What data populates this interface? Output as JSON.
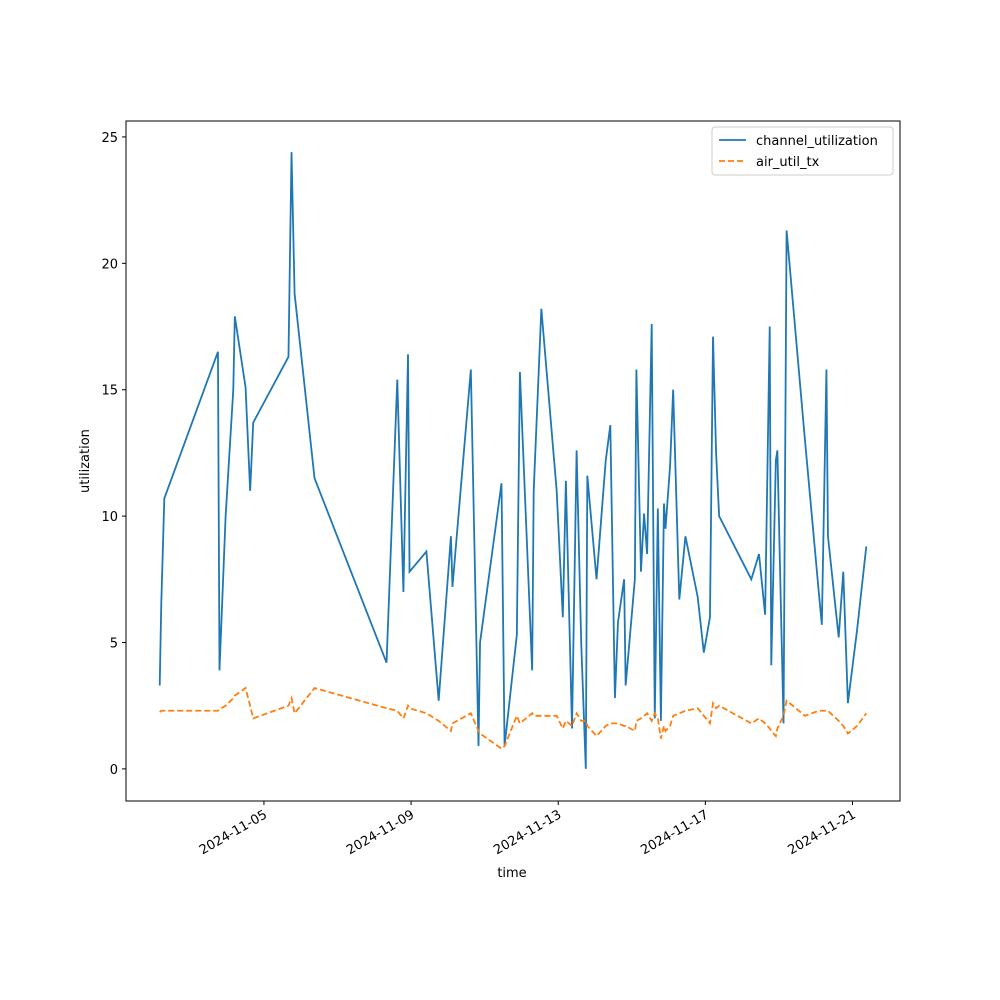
{
  "chart_data": {
    "type": "line",
    "xlabel": "time",
    "ylabel": "utilization",
    "x": [
      "2024-11-02T04:00",
      "2024-11-02T05:00",
      "2024-11-02T07:00",
      "2024-11-03T18:00",
      "2024-11-03T19:00",
      "2024-11-03T23:00",
      "2024-11-04T04:00",
      "2024-11-04T05:00",
      "2024-11-04T12:00",
      "2024-11-04T15:00",
      "2024-11-04T17:00",
      "2024-11-05T16:00",
      "2024-11-05T18:00",
      "2024-11-05T20:00",
      "2024-11-06T09:00",
      "2024-11-08T08:00",
      "2024-11-08T15:00",
      "2024-11-08T19:00",
      "2024-11-08T22:00",
      "2024-11-08T23:00",
      "2024-11-09T10:00",
      "2024-11-09T18:00",
      "2024-11-10T02:00",
      "2024-11-10T03:00",
      "2024-11-10T15:00",
      "2024-11-10T20:00",
      "2024-11-10T21:00",
      "2024-11-11T11:00",
      "2024-11-11T13:00",
      "2024-11-11T21:00",
      "2024-11-11T23:00",
      "2024-11-12T07:00",
      "2024-11-12T08:00",
      "2024-11-12T13:00",
      "2024-11-12T23:00",
      "2024-11-13T03:00",
      "2024-11-13T05:00",
      "2024-11-13T09:00",
      "2024-11-13T12:00",
      "2024-11-13T15:00",
      "2024-11-13T18:00",
      "2024-11-13T19:00",
      "2024-11-14T01:00",
      "2024-11-14T07:00",
      "2024-11-14T10:00",
      "2024-11-14T13:00",
      "2024-11-14T15:00",
      "2024-11-14T19:00",
      "2024-11-14T20:00",
      "2024-11-15T02:00",
      "2024-11-15T03:00",
      "2024-11-15T06:00",
      "2024-11-15T08:00",
      "2024-11-15T10:00",
      "2024-11-15T13:00",
      "2024-11-15T15:00",
      "2024-11-15T17:00",
      "2024-11-15T19:00",
      "2024-11-15T21:00",
      "2024-11-15T22:00",
      "2024-11-16T01:00",
      "2024-11-16T03:00",
      "2024-11-16T07:00",
      "2024-11-16T11:00",
      "2024-11-16T19:00",
      "2024-11-16T23:00",
      "2024-11-17T03:00",
      "2024-11-17T05:00",
      "2024-11-17T07:00",
      "2024-11-17T09:00",
      "2024-11-18T06:00",
      "2024-11-18T11:00",
      "2024-11-18T15:00",
      "2024-11-18T18:00",
      "2024-11-18T19:00",
      "2024-11-18T22:00",
      "2024-11-18T23:00",
      "2024-11-19T03:00",
      "2024-11-19T05:00",
      "2024-11-19T17:00",
      "2024-11-20T02:00",
      "2024-11-20T04:00",
      "2024-11-20T07:00",
      "2024-11-20T08:00",
      "2024-11-20T15:00",
      "2024-11-20T18:00",
      "2024-11-20T21:00",
      "2024-11-21T03:00",
      "2024-11-21T09:00"
    ],
    "series": [
      {
        "name": "channel_utilization",
        "color": "#1f77b4",
        "linestyle": "solid",
        "values": [
          3.3,
          6.5,
          10.7,
          16.5,
          3.9,
          10,
          15,
          17.9,
          15.1,
          11,
          13.7,
          16.3,
          24.4,
          18.8,
          11.5,
          4.2,
          15.4,
          7,
          16.4,
          7.8,
          8.6,
          2.7,
          9.2,
          7.2,
          15.8,
          0.9,
          5,
          11.3,
          0.9,
          5.3,
          15.7,
          3.9,
          11,
          18.2,
          11,
          6,
          11.4,
          1.6,
          12.6,
          5,
          0,
          11.6,
          7.5,
          12.2,
          13.6,
          2.8,
          5.8,
          7.5,
          3.3,
          7.5,
          15.8,
          7.8,
          10.1,
          8.5,
          17.6,
          2,
          10.3,
          1.9,
          10.5,
          9.5,
          12,
          15,
          6.7,
          9.2,
          6.8,
          4.6,
          6,
          17.1,
          12.5,
          10,
          7.5,
          8.5,
          6.1,
          17.5,
          4.1,
          12.2,
          12.6,
          1.8,
          21.3,
          13,
          7,
          5.7,
          15.8,
          9.2,
          5.2,
          7.8,
          2.6,
          5.5,
          8.8
        ]
      },
      {
        "name": "air_util_tx",
        "color": "#ff7f0e",
        "linestyle": "dashed",
        "values": [
          2.25,
          2.3,
          2.3,
          2.3,
          2.35,
          2.5,
          2.8,
          2.9,
          3.2,
          2.5,
          2.0,
          2.5,
          2.8,
          2.2,
          3.2,
          2.4,
          2.3,
          2.0,
          2.5,
          2.4,
          2.2,
          1.9,
          1.5,
          1.8,
          2.2,
          1.5,
          1.4,
          0.8,
          0.9,
          2.1,
          1.8,
          2.2,
          2.1,
          2.1,
          2.1,
          1.6,
          1.9,
          1.7,
          2.2,
          1.9,
          1.9,
          1.7,
          1.3,
          1.7,
          1.8,
          1.8,
          1.8,
          1.7,
          1.7,
          1.5,
          1.9,
          2.0,
          2.1,
          2.2,
          1.9,
          2.2,
          2.0,
          1.2,
          1.7,
          1.5,
          1.7,
          2.1,
          2.2,
          2.3,
          2.4,
          2.1,
          1.8,
          2.6,
          2.4,
          2.5,
          1.8,
          2.0,
          1.8,
          1.6,
          1.5,
          1.3,
          1.6,
          2.1,
          2.7,
          2.1,
          2.3,
          2.3,
          2.3,
          2.3,
          1.9,
          1.7,
          1.4,
          1.7,
          2.2
        ]
      }
    ],
    "xlim": [
      "2024-11-01T06:00",
      "2024-11-22T07:00"
    ],
    "xticks": [
      "2024-11-05",
      "2024-11-09",
      "2024-11-13",
      "2024-11-17",
      "2024-11-21"
    ],
    "ylim": [
      -1.27,
      25.63
    ],
    "yticks": [
      0,
      5,
      10,
      15,
      20,
      25
    ],
    "legend": "upper right"
  }
}
